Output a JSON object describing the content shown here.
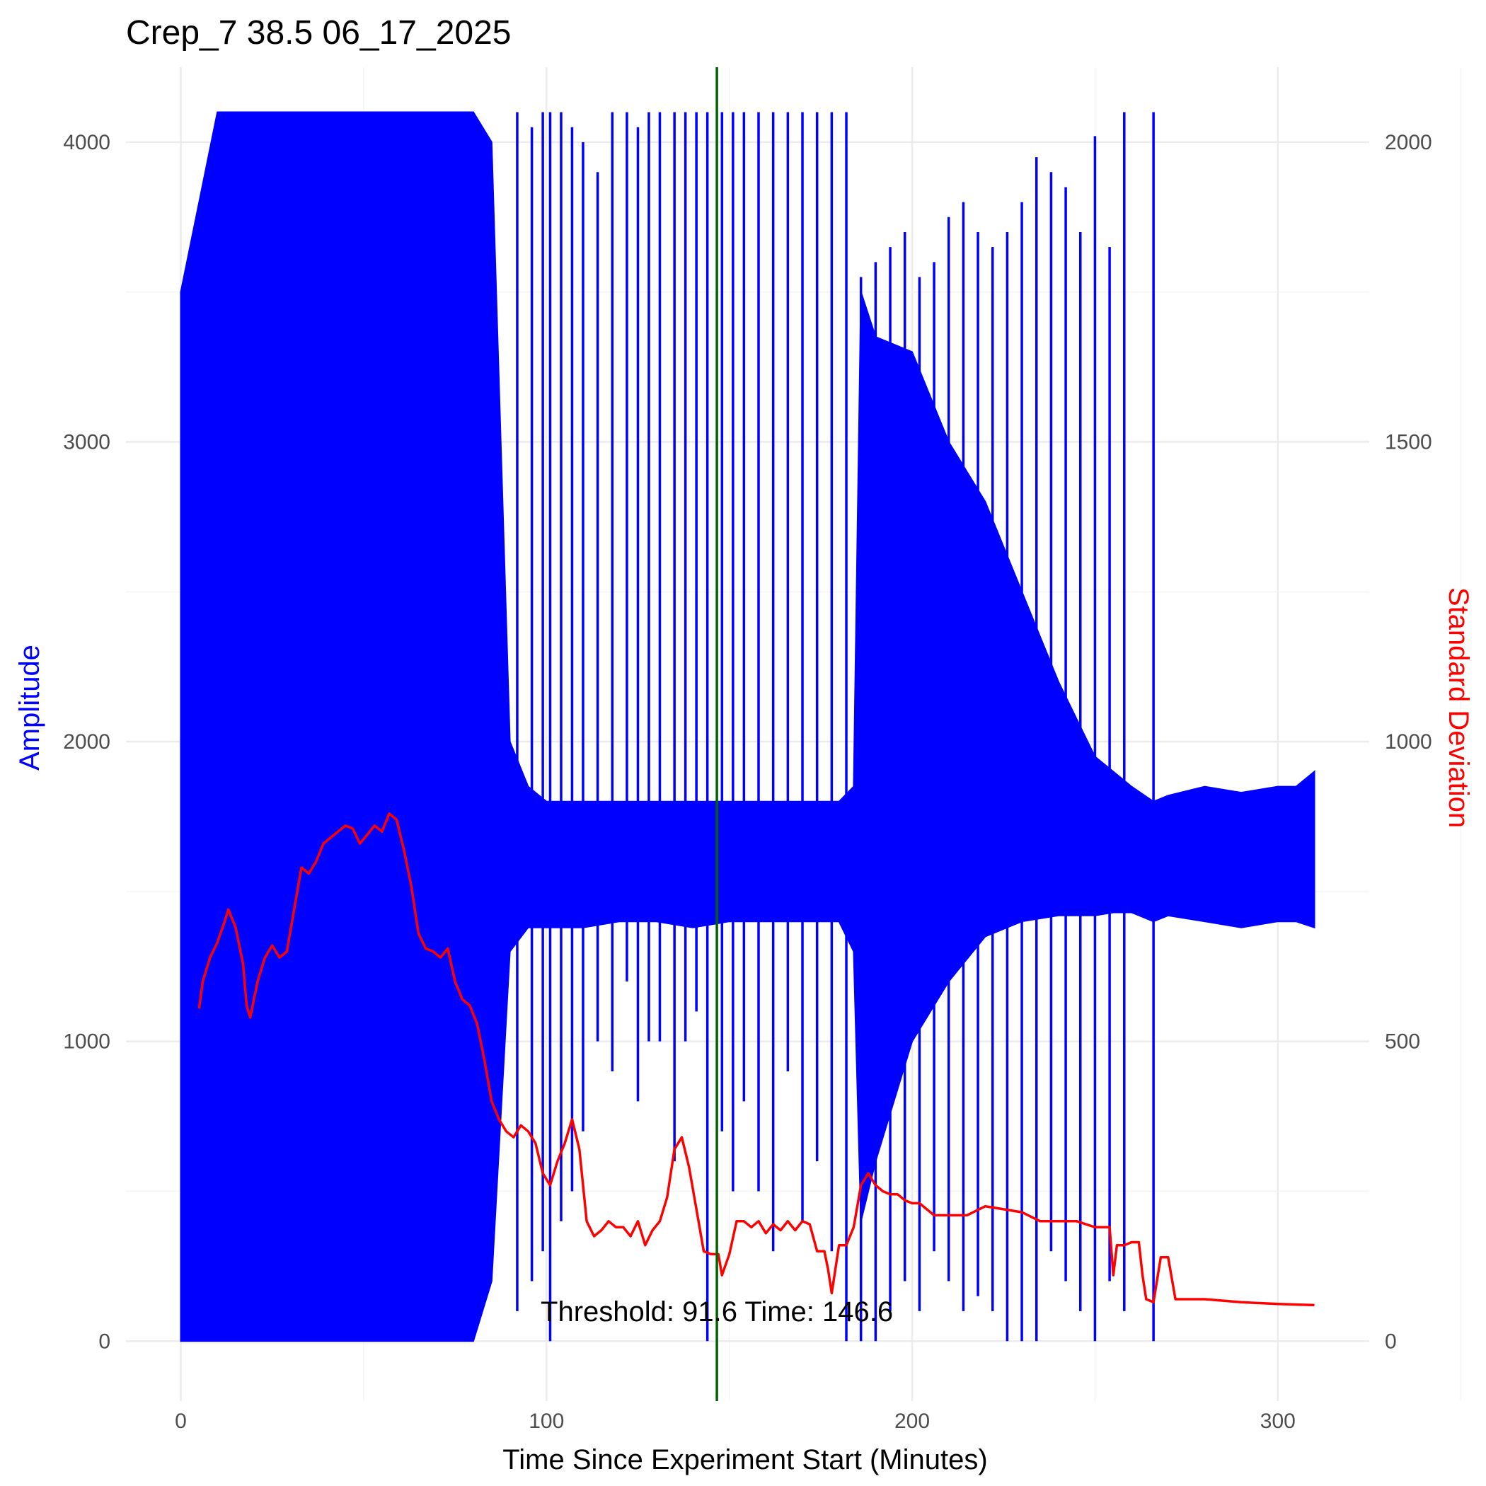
{
  "chart_data": {
    "type": "line",
    "title": "Crep_7 38.5 06_17_2025",
    "xlabel": "Time Since Experiment Start (Minutes)",
    "ylabel": "Amplitude",
    "ylabel_right": "Standard Deviation",
    "xlim": [
      -15,
      325
    ],
    "ylim": [
      -200,
      4250
    ],
    "ylim_right": [
      -100,
      2125
    ],
    "x_ticks": [
      0,
      100,
      200,
      300
    ],
    "y_ticks": [
      0,
      1000,
      2000,
      3000,
      4000
    ],
    "y_ticks_right": [
      0,
      500,
      1000,
      1500,
      2000
    ],
    "grid": true,
    "colors": {
      "amplitude": "#0000ff",
      "std": "#ff0000",
      "threshold_line": "#006400",
      "ylabel": "#0000ff",
      "ylabel_right": "#ff0000"
    },
    "amplitude_envelope": {
      "x": [
        0,
        5,
        10,
        20,
        28,
        40,
        60,
        80,
        85,
        90,
        95,
        100,
        110,
        120,
        130,
        140,
        150,
        160,
        170,
        180,
        184,
        186,
        190,
        200,
        210,
        220,
        230,
        240,
        250,
        255,
        260,
        266,
        270,
        280,
        290,
        300,
        305,
        310
      ],
      "upper": [
        3500,
        3800,
        4100,
        4100,
        4100,
        4100,
        4100,
        4100,
        4000,
        2000,
        1850,
        1800,
        1800,
        1800,
        1800,
        1800,
        1800,
        1800,
        1800,
        1800,
        1850,
        3500,
        3350,
        3300,
        3000,
        2800,
        2500,
        2200,
        1950,
        1900,
        1850,
        1800,
        1820,
        1850,
        1830,
        1850,
        1850,
        1900
      ],
      "lower": [
        0,
        0,
        0,
        0,
        0,
        0,
        0,
        0,
        200,
        1300,
        1380,
        1380,
        1380,
        1400,
        1400,
        1380,
        1400,
        1400,
        1400,
        1400,
        1300,
        400,
        600,
        1000,
        1200,
        1350,
        1400,
        1420,
        1420,
        1430,
        1430,
        1400,
        1420,
        1400,
        1380,
        1400,
        1400,
        1380
      ]
    },
    "amplitude_spikes": {
      "x": [
        92,
        96,
        99,
        101,
        104,
        107,
        110,
        114,
        118,
        122,
        125,
        128,
        131,
        135,
        138,
        141,
        144,
        148,
        151,
        154,
        158,
        162,
        166,
        170,
        174,
        178,
        182,
        186,
        190,
        194,
        198,
        202,
        206,
        210,
        214,
        218,
        222,
        226,
        230,
        234,
        238,
        242,
        246,
        250,
        254,
        258,
        266
      ],
      "high": [
        4100,
        4050,
        4100,
        4100,
        4100,
        4050,
        4000,
        3900,
        4100,
        4100,
        4050,
        4100,
        4100,
        4100,
        4100,
        4100,
        4100,
        4100,
        4100,
        4100,
        4100,
        4100,
        4100,
        4100,
        4100,
        4100,
        4100,
        3550,
        3600,
        3650,
        3700,
        3550,
        3600,
        3750,
        3800,
        3700,
        3650,
        3700,
        3800,
        3950,
        3900,
        3850,
        3700,
        4020,
        3650,
        4100,
        4100
      ],
      "low": [
        100,
        200,
        300,
        0,
        400,
        500,
        700,
        1000,
        900,
        1200,
        800,
        1000,
        1000,
        600,
        1000,
        1100,
        0,
        700,
        500,
        800,
        500,
        300,
        900,
        400,
        600,
        300,
        0,
        0,
        0,
        100,
        200,
        100,
        300,
        200,
        100,
        150,
        100,
        0,
        0,
        0,
        300,
        200,
        100,
        0,
        200,
        100,
        0
      ]
    },
    "std_series": {
      "x": [
        5,
        6,
        8,
        10,
        12,
        13,
        15,
        17,
        18,
        19,
        21,
        23,
        25,
        27,
        29,
        31,
        33,
        35,
        37,
        39,
        41,
        43,
        45,
        47,
        49,
        51,
        53,
        55,
        57,
        59,
        61,
        63,
        65,
        67,
        69,
        71,
        73,
        75,
        77,
        79,
        81,
        83,
        85,
        87,
        89,
        91,
        93,
        95,
        97,
        99,
        101,
        103,
        105,
        107,
        109,
        111,
        113,
        115,
        117,
        119,
        121,
        123,
        125,
        127,
        129,
        131,
        133,
        135,
        137,
        139,
        141,
        143,
        145,
        146,
        147,
        148,
        150,
        152,
        154,
        156,
        158,
        160,
        162,
        164,
        166,
        168,
        170,
        172,
        174,
        176,
        177,
        178,
        180,
        182,
        184,
        186,
        188,
        190,
        192,
        194,
        196,
        198,
        200,
        202,
        204,
        206,
        208,
        210,
        215,
        220,
        225,
        230,
        235,
        240,
        245,
        250,
        252,
        254,
        255,
        256,
        258,
        260,
        262,
        263,
        264,
        266,
        268,
        270,
        272,
        275,
        280,
        290,
        300,
        310
      ],
      "y": [
        555,
        600,
        640,
        665,
        700,
        720,
        690,
        630,
        560,
        540,
        600,
        640,
        660,
        640,
        650,
        720,
        790,
        780,
        800,
        830,
        840,
        850,
        860,
        855,
        830,
        845,
        860,
        850,
        880,
        870,
        820,
        760,
        680,
        655,
        650,
        640,
        655,
        600,
        570,
        560,
        530,
        470,
        400,
        370,
        350,
        340,
        360,
        350,
        330,
        280,
        260,
        300,
        330,
        370,
        320,
        200,
        175,
        185,
        200,
        190,
        190,
        175,
        200,
        160,
        185,
        200,
        240,
        320,
        340,
        290,
        220,
        150,
        145,
        145,
        145,
        110,
        145,
        200,
        200,
        190,
        200,
        180,
        195,
        185,
        200,
        185,
        200,
        195,
        150,
        150,
        120,
        80,
        160,
        160,
        190,
        260,
        280,
        260,
        250,
        245,
        245,
        235,
        230,
        230,
        220,
        210,
        210,
        210,
        210,
        225,
        220,
        215,
        200,
        200,
        200,
        190,
        190,
        190,
        110,
        160,
        160,
        165,
        165,
        110,
        70,
        65,
        140,
        140,
        70,
        70,
        70,
        65,
        62,
        60
      ]
    },
    "threshold": {
      "x": 146.6,
      "value": 91.6
    },
    "annotation": "Threshold: 91.6 Time: 146.6",
    "annotation_pos": {
      "x": 146.6,
      "y": 100
    }
  }
}
